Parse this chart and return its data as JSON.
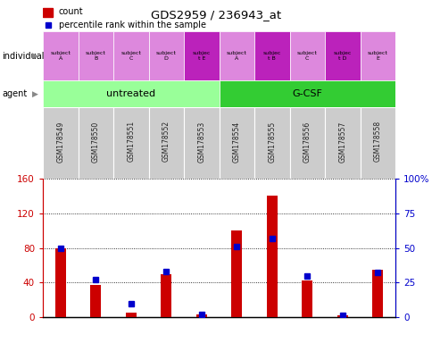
{
  "title": "GDS2959 / 236943_at",
  "samples": [
    "GSM178549",
    "GSM178550",
    "GSM178551",
    "GSM178552",
    "GSM178553",
    "GSM178554",
    "GSM178555",
    "GSM178556",
    "GSM178557",
    "GSM178558"
  ],
  "counts": [
    80,
    37,
    5,
    50,
    3,
    100,
    140,
    42,
    2,
    55
  ],
  "percentile_ranks": [
    50,
    27,
    10,
    33,
    2,
    51,
    57,
    30,
    1,
    32
  ],
  "count_ylim": [
    0,
    160
  ],
  "count_yticks": [
    0,
    40,
    80,
    120,
    160
  ],
  "pct_ylim": [
    0,
    100
  ],
  "pct_yticks": [
    0,
    25,
    50,
    75,
    100
  ],
  "count_color": "#cc0000",
  "pct_color": "#0000cc",
  "agent_labels": [
    "untreated",
    "G-CSF"
  ],
  "agent_colors": [
    "#99ff99",
    "#33cc33"
  ],
  "individual_labels": [
    "subject\nA",
    "subject\nB",
    "subject\nC",
    "subject\nD",
    "subjec\nt E",
    "subject\nA",
    "subjec\nt B",
    "subject\nC",
    "subjec\nt D",
    "subject\nE"
  ],
  "individual_highlights": [
    false,
    false,
    false,
    false,
    true,
    false,
    true,
    false,
    true,
    false
  ],
  "individual_color_normal": "#dd88dd",
  "individual_color_highlight": "#bb22bb",
  "gsm_bg_color": "#cccccc",
  "gsm_text_color": "#222222",
  "legend_count_label": "count",
  "legend_pct_label": "percentile rank within the sample"
}
